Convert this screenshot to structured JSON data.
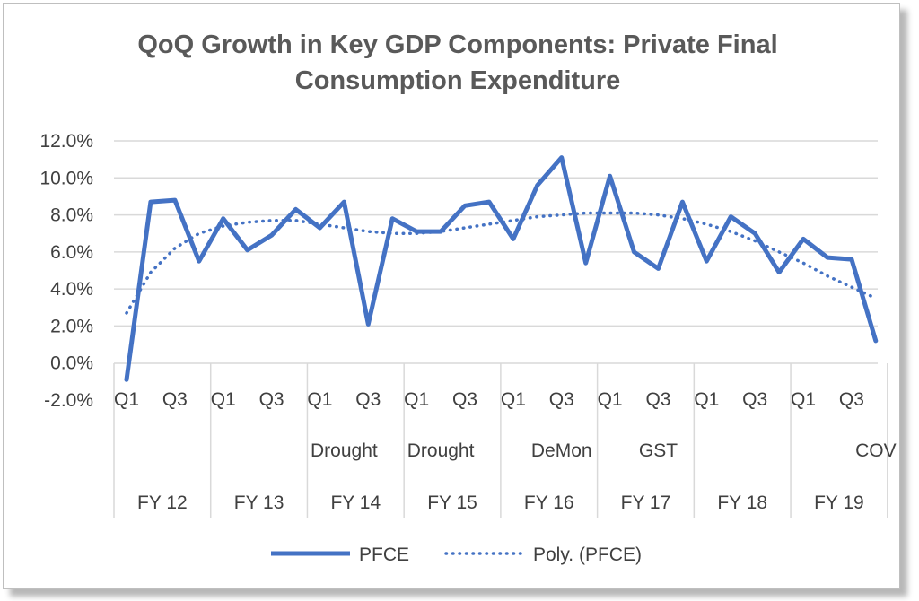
{
  "chart_data": {
    "type": "line",
    "title": "QoQ Growth in Key GDP Components: Private Final Consumption Expenditure",
    "title_lines": [
      "QoQ Growth in Key GDP Components: Private Final",
      "Consumption Expenditure"
    ],
    "ylim": [
      -0.02,
      0.12
    ],
    "y_ticks": [
      "12.0%",
      "10.0%",
      "8.0%",
      "6.0%",
      "4.0%",
      "2.0%",
      "0.0%",
      "-2.0%"
    ],
    "quarter_labels": [
      "Q1",
      "",
      "Q3",
      "",
      "Q1",
      "",
      "Q3",
      "",
      "Q1",
      "",
      "Q3",
      "",
      "Q1",
      "",
      "Q3",
      "",
      "Q1",
      "",
      "Q3",
      "",
      "Q1",
      "",
      "Q3",
      "",
      "Q1",
      "",
      "Q3",
      "",
      "Q1",
      "",
      "Q3",
      ""
    ],
    "event_labels": [
      {
        "index": 9,
        "label": "Drought"
      },
      {
        "index": 13,
        "label": "Drought"
      },
      {
        "index": 18,
        "label": "DeMon"
      },
      {
        "index": 22,
        "label": "GST"
      },
      {
        "index": 31,
        "label": "COV"
      }
    ],
    "fiscal_years": [
      "FY 12",
      "FY 13",
      "FY 14",
      "FY 15",
      "FY 16",
      "FY 17",
      "FY 18",
      "FY 19"
    ],
    "series": [
      {
        "name": "PFCE",
        "style": "solid",
        "color": "#4472c4",
        "values": [
          -0.009,
          0.087,
          0.088,
          0.055,
          0.078,
          0.061,
          0.069,
          0.083,
          0.073,
          0.087,
          0.021,
          0.078,
          0.071,
          0.071,
          0.085,
          0.087,
          0.067,
          0.096,
          0.111,
          0.054,
          0.101,
          0.06,
          0.051,
          0.087,
          0.055,
          0.079,
          0.07,
          0.049,
          0.067,
          0.057,
          0.056,
          0.012
        ]
      },
      {
        "name": "Poly. (PFCE)",
        "style": "dotted",
        "color": "#4472c4",
        "values": [
          0.027,
          0.049,
          0.062,
          0.07,
          0.074,
          0.076,
          0.077,
          0.077,
          0.075,
          0.073,
          0.071,
          0.07,
          0.07,
          0.071,
          0.073,
          0.075,
          0.077,
          0.079,
          0.08,
          0.081,
          0.081,
          0.081,
          0.08,
          0.078,
          0.075,
          0.071,
          0.066,
          0.06,
          0.054,
          0.047,
          0.041,
          0.035
        ]
      }
    ],
    "legend": {
      "position": "bottom"
    },
    "grid": true
  }
}
